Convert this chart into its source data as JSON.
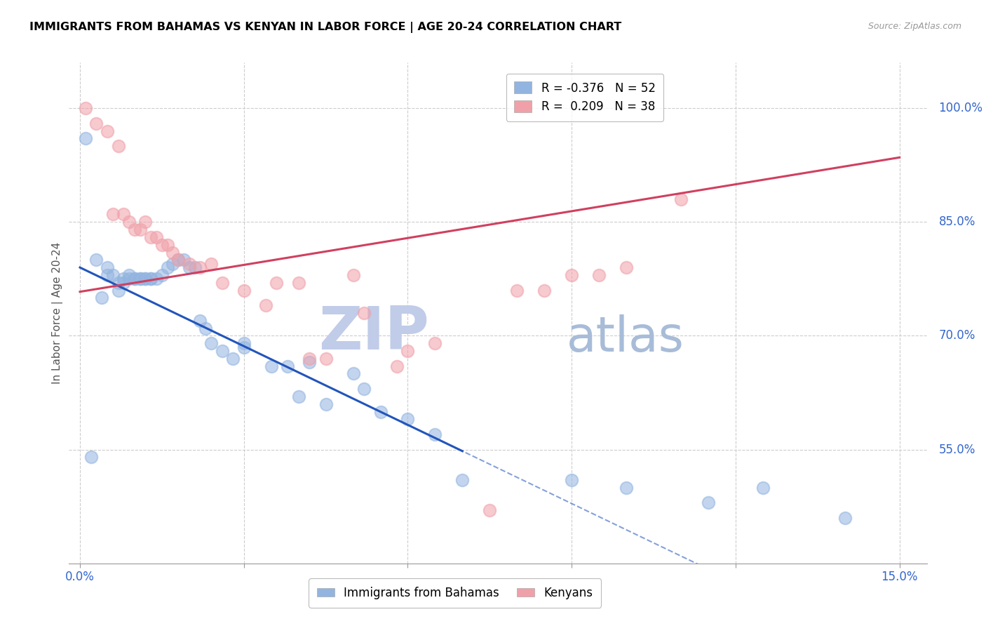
{
  "title": "IMMIGRANTS FROM BAHAMAS VS KENYAN IN LABOR FORCE | AGE 20-24 CORRELATION CHART",
  "source": "Source: ZipAtlas.com",
  "ylabel": "In Labor Force | Age 20-24",
  "y_ticks": [
    0.55,
    0.7,
    0.85,
    1.0
  ],
  "y_tick_labels": [
    "55.0%",
    "70.0%",
    "85.0%",
    "100.0%"
  ],
  "x_tick_positions": [
    0.0,
    0.03,
    0.06,
    0.09,
    0.12,
    0.15
  ],
  "x_tick_labels": [
    "0.0%",
    "",
    "",
    "",
    "",
    "15.0%"
  ],
  "xlim": [
    -0.002,
    0.155
  ],
  "ylim": [
    0.4,
    1.06
  ],
  "blue_color": "#92b4e0",
  "pink_color": "#f0a0a8",
  "trend_blue": "#2255bb",
  "trend_pink": "#d04060",
  "axis_color": "#3366cc",
  "grid_color": "#cccccc",
  "watermark_zip": "ZIP",
  "watermark_atlas": "atlas",
  "watermark_color_zip": "#c0cce8",
  "watermark_color_atlas": "#a8bcd8",
  "legend_label1": "R = -0.376   N = 52",
  "legend_label2": "R =  0.209   N = 38",
  "bottom_legend_label1": "Immigrants from Bahamas",
  "bottom_legend_label2": "Kenyans",
  "blue_trend_x0": 0.0,
  "blue_trend_y0": 0.79,
  "blue_trend_x1": 0.07,
  "blue_trend_y1": 0.548,
  "pink_trend_x0": 0.0,
  "pink_trend_y0": 0.758,
  "pink_trend_x1": 0.15,
  "pink_trend_y1": 0.935,
  "bahamas_x": [
    0.001,
    0.002,
    0.003,
    0.004,
    0.005,
    0.005,
    0.006,
    0.007,
    0.007,
    0.008,
    0.008,
    0.009,
    0.009,
    0.01,
    0.01,
    0.011,
    0.011,
    0.012,
    0.012,
    0.013,
    0.013,
    0.014,
    0.015,
    0.016,
    0.017,
    0.018,
    0.019,
    0.02,
    0.021,
    0.022,
    0.023,
    0.024,
    0.026,
    0.028,
    0.03,
    0.035,
    0.038,
    0.042,
    0.045,
    0.05,
    0.055,
    0.06,
    0.065,
    0.03,
    0.04,
    0.052,
    0.07,
    0.09,
    0.1,
    0.115,
    0.125,
    0.14
  ],
  "bahamas_y": [
    0.96,
    0.54,
    0.8,
    0.75,
    0.79,
    0.78,
    0.78,
    0.77,
    0.76,
    0.77,
    0.775,
    0.775,
    0.78,
    0.775,
    0.775,
    0.775,
    0.775,
    0.775,
    0.775,
    0.775,
    0.775,
    0.775,
    0.78,
    0.79,
    0.795,
    0.8,
    0.8,
    0.79,
    0.79,
    0.72,
    0.71,
    0.69,
    0.68,
    0.67,
    0.69,
    0.66,
    0.66,
    0.665,
    0.61,
    0.65,
    0.6,
    0.59,
    0.57,
    0.685,
    0.62,
    0.63,
    0.51,
    0.51,
    0.5,
    0.48,
    0.5,
    0.46
  ],
  "kenyan_x": [
    0.001,
    0.003,
    0.005,
    0.006,
    0.007,
    0.008,
    0.009,
    0.01,
    0.011,
    0.012,
    0.013,
    0.014,
    0.015,
    0.016,
    0.017,
    0.018,
    0.02,
    0.022,
    0.024,
    0.026,
    0.03,
    0.034,
    0.036,
    0.04,
    0.042,
    0.045,
    0.05,
    0.052,
    0.058,
    0.06,
    0.065,
    0.075,
    0.08,
    0.085,
    0.09,
    0.095,
    0.1,
    0.11
  ],
  "kenyan_y": [
    1.0,
    0.98,
    0.97,
    0.86,
    0.95,
    0.86,
    0.85,
    0.84,
    0.84,
    0.85,
    0.83,
    0.83,
    0.82,
    0.82,
    0.81,
    0.8,
    0.795,
    0.79,
    0.795,
    0.77,
    0.76,
    0.74,
    0.77,
    0.77,
    0.67,
    0.67,
    0.78,
    0.73,
    0.66,
    0.68,
    0.69,
    0.47,
    0.76,
    0.76,
    0.78,
    0.78,
    0.79,
    0.88
  ]
}
